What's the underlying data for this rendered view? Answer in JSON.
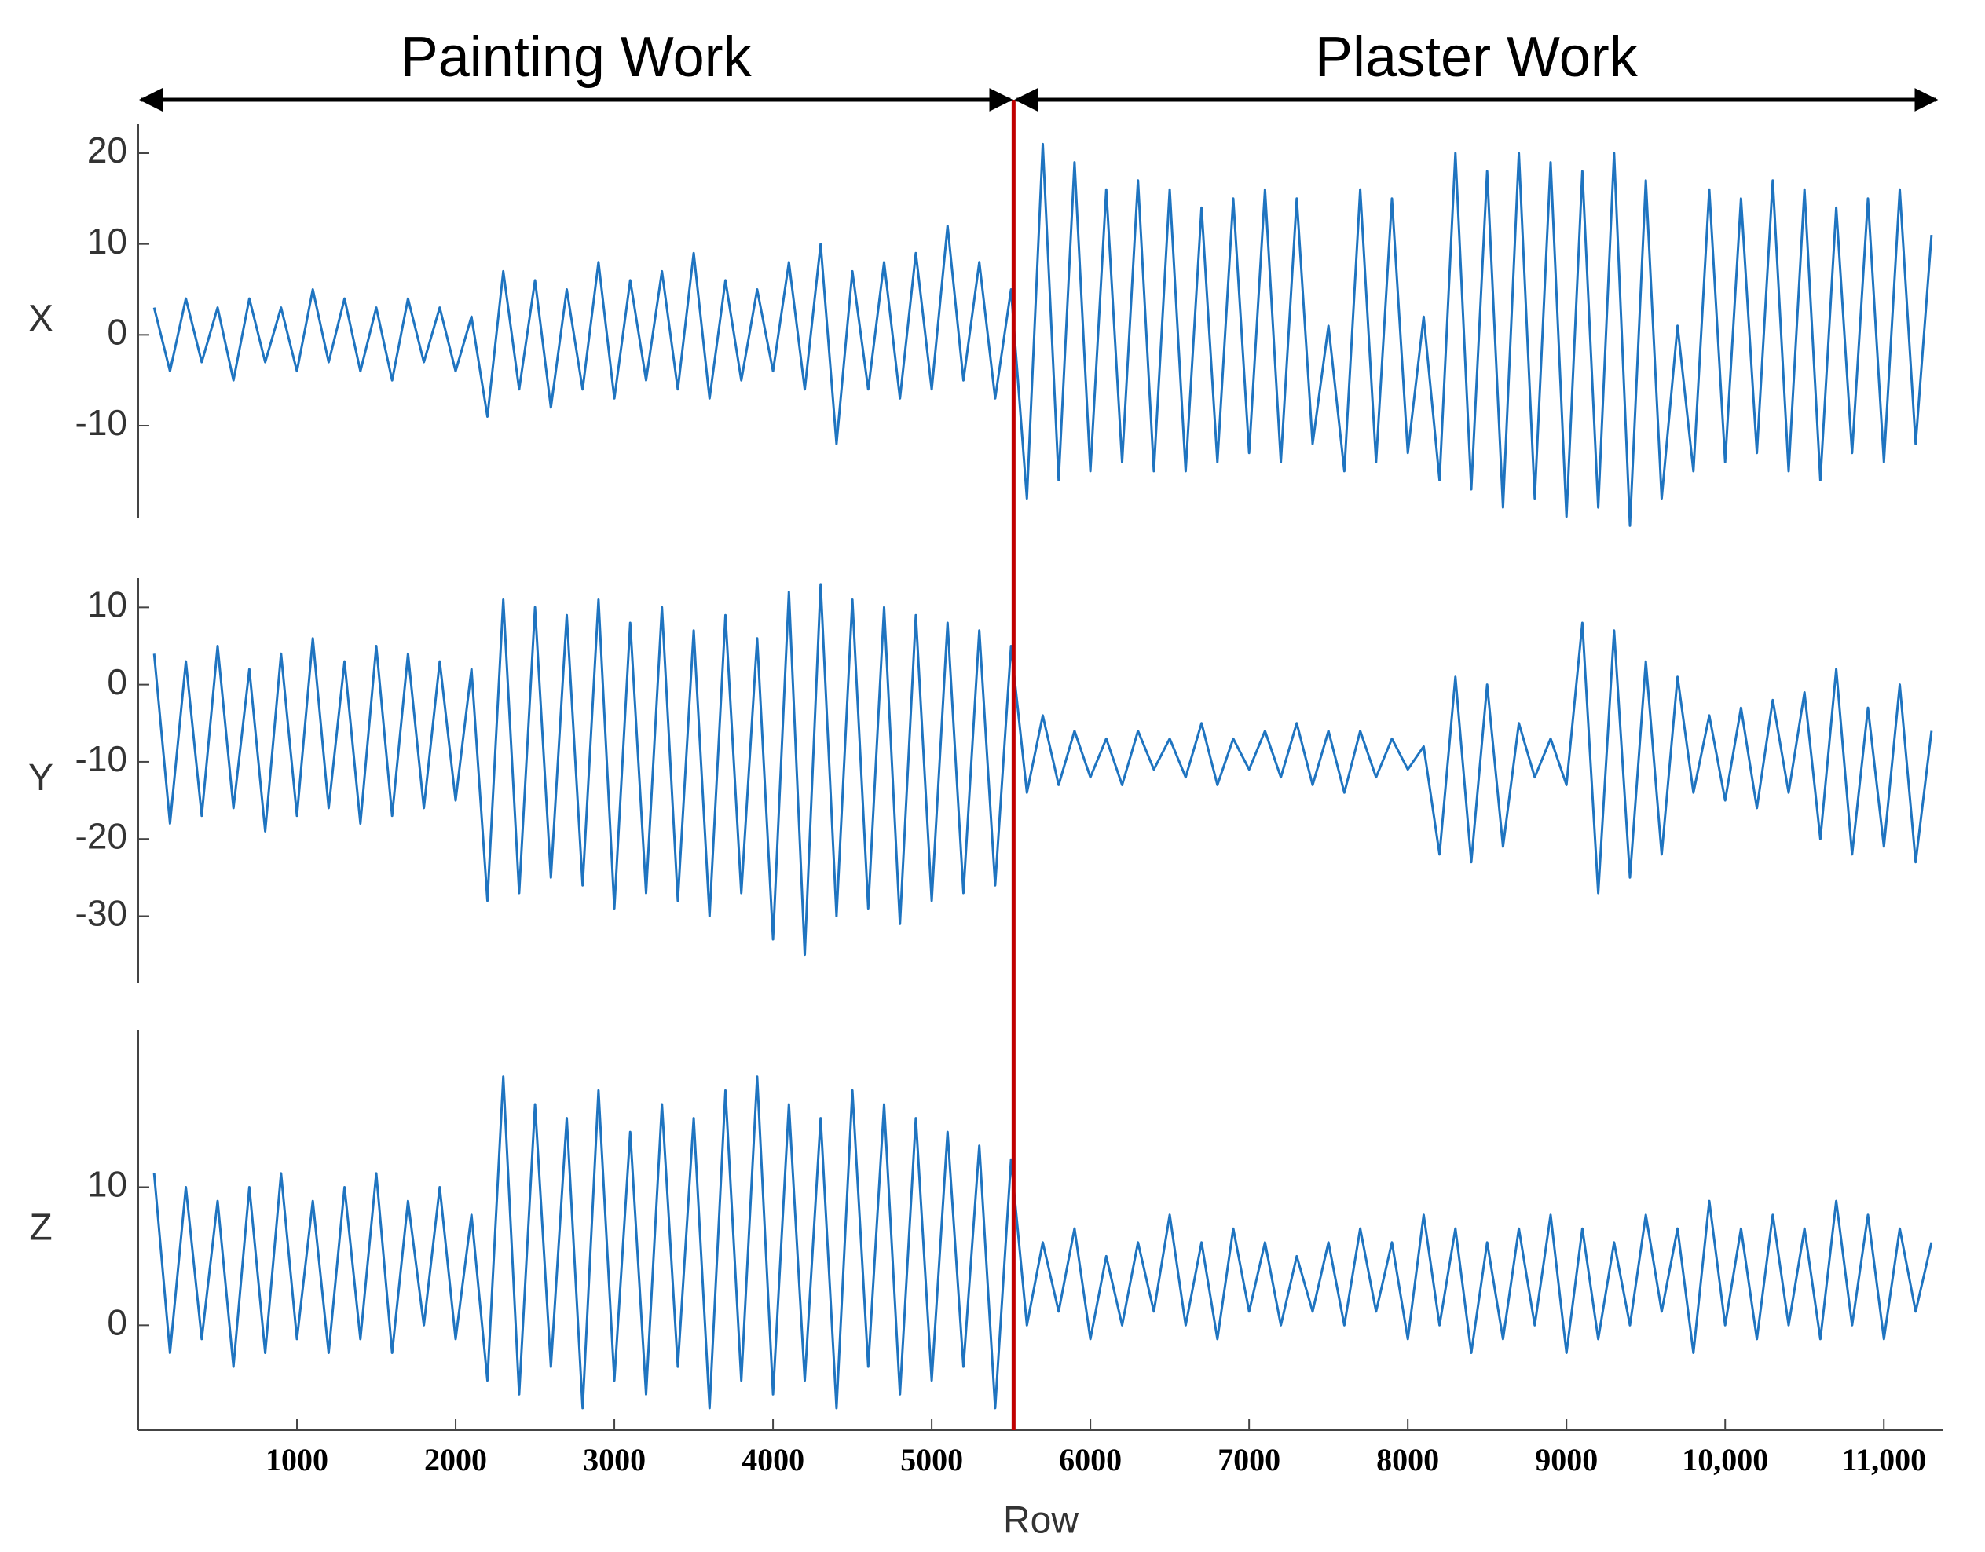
{
  "chart_data": {
    "type": "line",
    "xlabel": "Row",
    "xlim": [
      0,
      11370
    ],
    "xticks": [
      1000,
      2000,
      3000,
      4000,
      5000,
      6000,
      7000,
      8000,
      9000,
      {
        "value": 10000,
        "label": "10,000"
      },
      {
        "value": 11000,
        "label": "11,000"
      }
    ],
    "x": [
      100,
      200,
      300,
      400,
      500,
      600,
      700,
      800,
      900,
      1000,
      1100,
      1200,
      1300,
      1400,
      1500,
      1600,
      1700,
      1800,
      1900,
      2000,
      2100,
      2200,
      2300,
      2400,
      2500,
      2600,
      2700,
      2800,
      2900,
      3000,
      3100,
      3200,
      3300,
      3400,
      3500,
      3600,
      3700,
      3800,
      3900,
      4000,
      4100,
      4200,
      4300,
      4400,
      4500,
      4600,
      4700,
      4800,
      4900,
      5000,
      5100,
      5200,
      5300,
      5400,
      5500,
      5600,
      5700,
      5800,
      5900,
      6000,
      6100,
      6200,
      6300,
      6400,
      6500,
      6600,
      6700,
      6800,
      6900,
      7000,
      7100,
      7200,
      7300,
      7400,
      7500,
      7600,
      7700,
      7800,
      7900,
      8000,
      8100,
      8200,
      8300,
      8400,
      8500,
      8600,
      8700,
      8800,
      8900,
      9000,
      9100,
      9200,
      9300,
      9400,
      9500,
      9600,
      9700,
      9800,
      9900,
      10000,
      10100,
      10200,
      10300,
      10400,
      10500,
      10600,
      10700,
      10800,
      10900,
      11000,
      11100,
      11200,
      11300
    ],
    "subplots": [
      {
        "ylabel": "X",
        "ylim": [
          -20.2,
          23.2
        ],
        "yticks": [
          -10,
          0,
          10,
          20
        ],
        "series": [
          {
            "color": "#1f74c0",
            "values": [
              3,
              -4,
              4,
              -3,
              3,
              -5,
              4,
              -3,
              3,
              -4,
              5,
              -3,
              4,
              -4,
              3,
              -5,
              4,
              -3,
              3,
              -4,
              2,
              -9,
              7,
              -6,
              6,
              -8,
              5,
              -6,
              8,
              -7,
              6,
              -5,
              7,
              -6,
              9,
              -7,
              6,
              -5,
              5,
              -4,
              8,
              -6,
              10,
              -12,
              7,
              -6,
              8,
              -7,
              9,
              -6,
              12,
              -5,
              8,
              -7,
              5,
              -18,
              21,
              -16,
              19,
              -15,
              16,
              -14,
              17,
              -15,
              16,
              -15,
              14,
              -14,
              15,
              -13,
              16,
              -14,
              15,
              -12,
              1,
              -15,
              16,
              -14,
              15,
              -13,
              2,
              -16,
              20,
              -17,
              18,
              -19,
              20,
              -18,
              19,
              -20,
              18,
              -19,
              20,
              -21,
              17,
              -18,
              1,
              -15,
              16,
              -14,
              15,
              -13,
              17,
              -15,
              16,
              -16,
              14,
              -13,
              15,
              -14,
              16,
              -12,
              11
            ]
          }
        ]
      },
      {
        "ylabel": "Y",
        "ylim": [
          -38.6,
          13.8
        ],
        "yticks": [
          -30,
          -20,
          -10,
          0,
          10
        ],
        "series": [
          {
            "color": "#1f74c0",
            "values": [
              4,
              -18,
              3,
              -17,
              5,
              -16,
              2,
              -19,
              4,
              -17,
              6,
              -16,
              3,
              -18,
              5,
              -17,
              4,
              -16,
              3,
              -15,
              2,
              -28,
              11,
              -27,
              10,
              -25,
              9,
              -26,
              11,
              -29,
              8,
              -27,
              10,
              -28,
              7,
              -30,
              9,
              -27,
              6,
              -33,
              12,
              -35,
              13,
              -30,
              11,
              -29,
              10,
              -31,
              9,
              -28,
              8,
              -27,
              7,
              -26,
              5,
              -14,
              -4,
              -13,
              -6,
              -12,
              -7,
              -13,
              -6,
              -11,
              -7,
              -12,
              -5,
              -13,
              -7,
              -11,
              -6,
              -12,
              -5,
              -13,
              -6,
              -14,
              -6,
              -12,
              -7,
              -11,
              -8,
              -22,
              1,
              -23,
              0,
              -21,
              -5,
              -12,
              -7,
              -13,
              8,
              -27,
              7,
              -25,
              3,
              -22,
              1,
              -14,
              -4,
              -15,
              -3,
              -16,
              -2,
              -14,
              -1,
              -20,
              2,
              -22,
              -3,
              -21,
              0,
              -23,
              -6
            ]
          }
        ]
      },
      {
        "ylabel": "Z",
        "ylim": [
          -7.6,
          21.4
        ],
        "yticks": [
          0,
          10
        ],
        "series": [
          {
            "color": "#1f74c0",
            "values": [
              11,
              -2,
              10,
              -1,
              9,
              -3,
              10,
              -2,
              11,
              -1,
              9,
              -2,
              10,
              -1,
              11,
              -2,
              9,
              0,
              10,
              -1,
              8,
              -4,
              18,
              -5,
              16,
              -3,
              15,
              -6,
              17,
              -4,
              14,
              -5,
              16,
              -3,
              15,
              -6,
              17,
              -4,
              18,
              -5,
              16,
              -4,
              15,
              -6,
              17,
              -3,
              16,
              -5,
              15,
              -4,
              14,
              -3,
              13,
              -6,
              12,
              0,
              6,
              1,
              7,
              -1,
              5,
              0,
              6,
              1,
              8,
              0,
              6,
              -1,
              7,
              1,
              6,
              0,
              5,
              1,
              6,
              0,
              7,
              1,
              6,
              -1,
              8,
              0,
              7,
              -2,
              6,
              -1,
              7,
              0,
              8,
              -2,
              7,
              -1,
              6,
              0,
              8,
              1,
              7,
              -2,
              9,
              0,
              7,
              -1,
              8,
              0,
              7,
              -1,
              9,
              0,
              8,
              -1,
              7,
              1,
              6
            ]
          }
        ]
      }
    ],
    "divider": {
      "x": 5516,
      "color": "#c00000"
    },
    "regions": [
      {
        "text": "Painting Work",
        "range": [
          0,
          5516
        ]
      },
      {
        "text": "Plaster Work",
        "range": [
          5516,
          11347
        ]
      }
    ]
  }
}
